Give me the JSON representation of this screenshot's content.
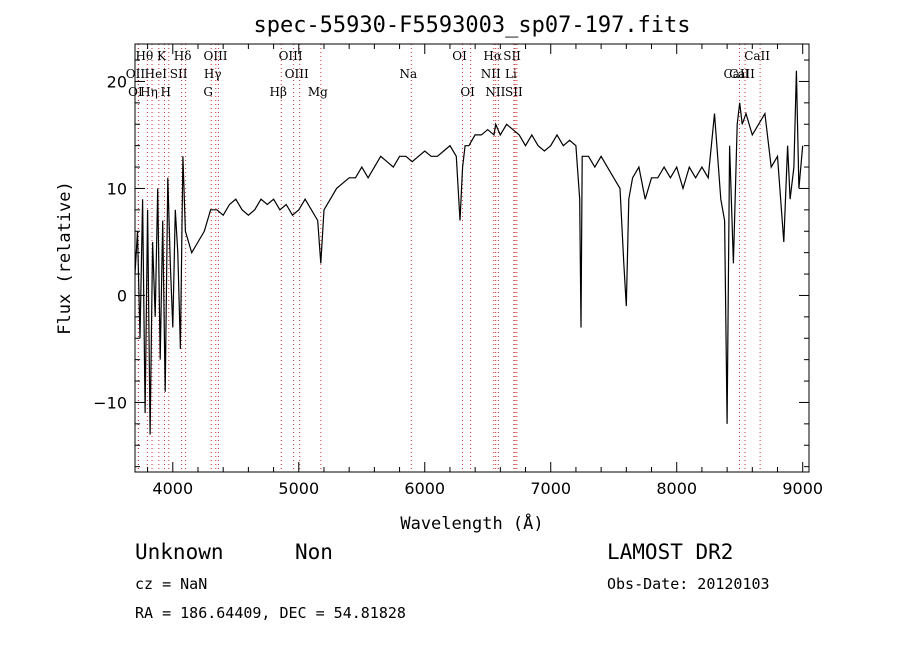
{
  "chart_data": {
    "type": "line",
    "title": "spec-55930-F5593003_sp07-197.fits",
    "xlabel": "Wavelength (Å)",
    "ylabel": "Flux (relative)",
    "xlim": [
      3700,
      9050
    ],
    "ylim": [
      -16.5,
      23.5
    ],
    "xticks": [
      4000,
      5000,
      6000,
      7000,
      8000,
      9000
    ],
    "yticks": [
      -10,
      0,
      10,
      20
    ],
    "grid": false,
    "series": [
      {
        "x": [
          3700,
          3720,
          3740,
          3760,
          3780,
          3800,
          3820,
          3840,
          3860,
          3880,
          3900,
          3920,
          3940,
          3960,
          3980,
          4000,
          4020,
          4040,
          4060,
          4080,
          4100,
          4150,
          4200,
          4250,
          4300,
          4350,
          4400,
          4450,
          4500,
          4550,
          4600,
          4650,
          4700,
          4750,
          4800,
          4850,
          4900,
          4950,
          5000,
          5050,
          5100,
          5150,
          5175,
          5200,
          5250,
          5300,
          5350,
          5400,
          5450,
          5500,
          5550,
          5600,
          5650,
          5700,
          5750,
          5800,
          5850,
          5900,
          5950,
          6000,
          6050,
          6100,
          6150,
          6200,
          6250,
          6280,
          6300,
          6320,
          6350,
          6400,
          6450,
          6500,
          6550,
          6563,
          6600,
          6650,
          6700,
          6750,
          6800,
          6850,
          6900,
          6950,
          7000,
          7050,
          7100,
          7150,
          7200,
          7230,
          7240,
          7250,
          7300,
          7350,
          7400,
          7450,
          7500,
          7550,
          7580,
          7600,
          7620,
          7650,
          7700,
          7750,
          7800,
          7850,
          7900,
          7950,
          8000,
          8050,
          8100,
          8150,
          8200,
          8250,
          8300,
          8350,
          8380,
          8400,
          8420,
          8450,
          8480,
          8500,
          8520,
          8550,
          8600,
          8650,
          8700,
          8750,
          8800,
          8850,
          8880,
          8900,
          8930,
          8950,
          8970,
          9000
        ],
        "y": [
          2,
          6,
          -4,
          9,
          -11,
          8,
          -13,
          5,
          -2,
          10,
          -6,
          7,
          -9,
          11,
          3,
          -3,
          8,
          4,
          -5,
          13,
          6,
          4,
          5,
          6,
          8,
          8,
          7.5,
          8.5,
          9,
          8,
          7.5,
          8,
          9,
          8.5,
          9,
          8,
          8.5,
          7.5,
          8,
          9,
          8,
          7,
          3,
          8,
          9,
          10,
          10.5,
          11,
          11,
          12,
          11,
          12,
          13,
          12.5,
          12,
          13,
          13,
          12.5,
          13,
          13.5,
          13,
          13,
          13.5,
          14,
          13,
          7,
          12,
          14,
          14,
          15,
          15,
          15.5,
          15,
          16,
          15,
          16,
          15.5,
          15,
          14,
          15,
          14,
          13.5,
          14,
          15,
          14,
          14.5,
          14,
          9,
          -3,
          13,
          13,
          12,
          13,
          12,
          11,
          10,
          3,
          -1,
          9,
          11,
          12,
          9,
          11,
          11,
          12,
          11,
          12,
          10,
          12,
          11,
          12,
          11,
          17,
          9,
          7,
          -12,
          14,
          3,
          16,
          18,
          16,
          17,
          15,
          16,
          17,
          12,
          13,
          5,
          14,
          9,
          12,
          21,
          10,
          14
        ]
      }
    ],
    "line_markers": [
      {
        "label": "Hθ",
        "wave": 3798
      },
      {
        "label": "K",
        "wave": 3934
      },
      {
        "label": "Hδ",
        "wave": 4102
      },
      {
        "label": "OII",
        "wave": 3727
      },
      {
        "label": "HeI",
        "wave": 3889
      },
      {
        "label": "SII",
        "wave": 4070
      },
      {
        "label": "OI",
        "wave": 3727
      },
      {
        "label": "Hη",
        "wave": 3835
      },
      {
        "label": "H",
        "wave": 3968
      },
      {
        "label": "OIII",
        "wave": 4363
      },
      {
        "label": "Hγ",
        "wave": 4341
      },
      {
        "label": "G",
        "wave": 4305
      },
      {
        "label": "Hβ",
        "wave": 4861
      },
      {
        "label": "OIII",
        "wave": 4959
      },
      {
        "label": "OIII",
        "wave": 5007
      },
      {
        "label": "Mg",
        "wave": 5175
      },
      {
        "label": "Na",
        "wave": 5893
      },
      {
        "label": "OI",
        "wave": 6300
      },
      {
        "label": "OI",
        "wave": 6364
      },
      {
        "label": "Hα",
        "wave": 6563
      },
      {
        "label": "NII",
        "wave": 6548
      },
      {
        "label": "NII",
        "wave": 6584
      },
      {
        "label": "SII",
        "wave": 6717
      },
      {
        "label": "Li",
        "wave": 6708
      },
      {
        "label": "SII",
        "wave": 6731
      },
      {
        "label": "CaII",
        "wave": 8498
      },
      {
        "label": "CaII",
        "wave": 8542
      },
      {
        "label": "CaII",
        "wave": 8662
      }
    ]
  },
  "footer": {
    "class_label": "Unknown",
    "subclass_label": "Non",
    "survey": "LAMOST DR2",
    "cz": "cz = NaN",
    "obs_date": "Obs-Date: 20120103",
    "coords": "RA = 186.64409, DEC =  54.81828"
  }
}
